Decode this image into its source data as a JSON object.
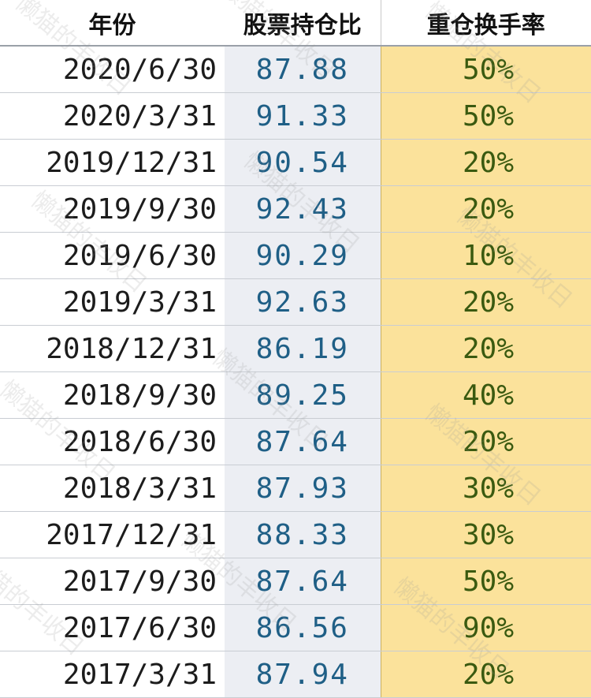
{
  "headers": {
    "year": "年份",
    "stock_ratio": "股票持仓比",
    "turnover": "重仓换手率"
  },
  "rows": [
    {
      "date": "2020/6/30",
      "ratio": "87.88",
      "turnover": "50%"
    },
    {
      "date": "2020/3/31",
      "ratio": "91.33",
      "turnover": "50%"
    },
    {
      "date": "2019/12/31",
      "ratio": "90.54",
      "turnover": "20%"
    },
    {
      "date": "2019/9/30",
      "ratio": "92.43",
      "turnover": "20%"
    },
    {
      "date": "2019/6/30",
      "ratio": "90.29",
      "turnover": "10%"
    },
    {
      "date": "2019/3/31",
      "ratio": "92.63",
      "turnover": "20%"
    },
    {
      "date": "2018/12/31",
      "ratio": "86.19",
      "turnover": "20%"
    },
    {
      "date": "2018/9/30",
      "ratio": "89.25",
      "turnover": "40%"
    },
    {
      "date": "2018/6/30",
      "ratio": "87.64",
      "turnover": "20%"
    },
    {
      "date": "2018/3/31",
      "ratio": "87.93",
      "turnover": "30%"
    },
    {
      "date": "2017/12/31",
      "ratio": "88.33",
      "turnover": "30%"
    },
    {
      "date": "2017/9/30",
      "ratio": "87.64",
      "turnover": "50%"
    },
    {
      "date": "2017/6/30",
      "ratio": "86.56",
      "turnover": "90%"
    },
    {
      "date": "2017/3/31",
      "ratio": "87.94",
      "turnover": "20%"
    }
  ],
  "watermark": "懒猫的丰收日",
  "colors": {
    "turnover_fill": "#fbe29b",
    "ratio_fill": "#eceef3",
    "ratio_text": "#1f5f86",
    "turnover_text": "#3a5a10"
  }
}
